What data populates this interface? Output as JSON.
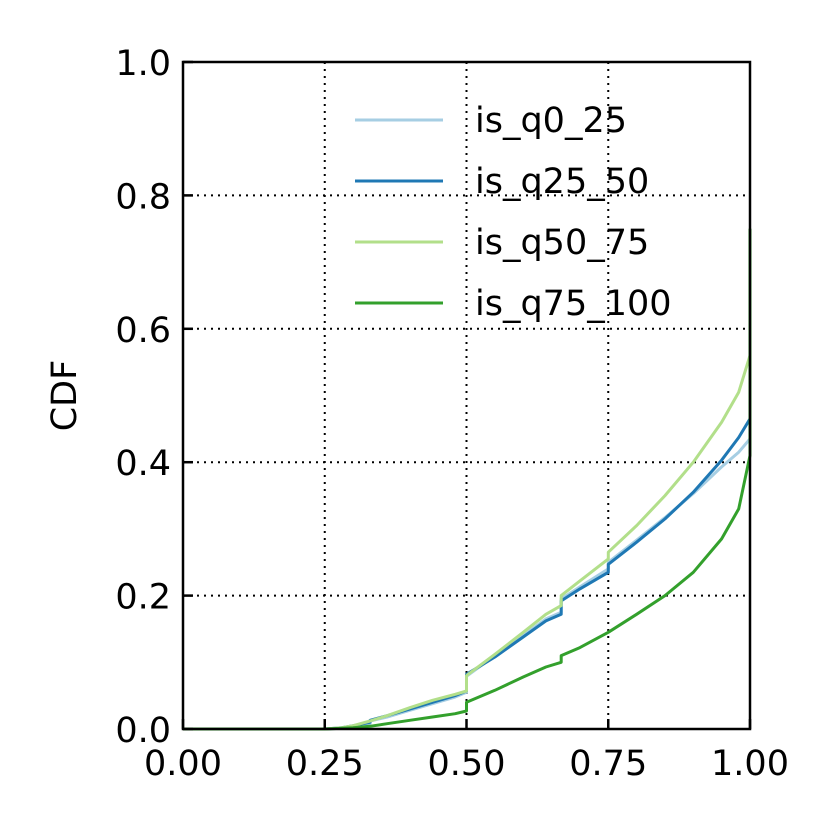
{
  "chart_data": {
    "type": "line",
    "title": "",
    "xlabel": "",
    "ylabel": "CDF",
    "xlim": [
      0.0,
      1.0
    ],
    "ylim": [
      0.0,
      1.0
    ],
    "xticks": [
      "0.00",
      "0.25",
      "0.50",
      "0.75",
      "1.00"
    ],
    "yticks": [
      "0.0",
      "0.2",
      "0.4",
      "0.6",
      "0.8",
      "1.0"
    ],
    "grid": true,
    "legend_position": "upper-right",
    "series": [
      {
        "name": "is_q0_25",
        "color": "#a6cee3",
        "x": [
          0.0,
          0.25,
          0.28,
          0.3,
          0.33,
          0.33,
          0.36,
          0.4,
          0.44,
          0.48,
          0.5,
          0.5,
          0.55,
          0.6,
          0.64,
          0.667,
          0.667,
          0.7,
          0.75,
          0.75,
          0.8,
          0.85,
          0.9,
          0.95,
          0.98,
          1.0
        ],
        "y": [
          0.0,
          0.0,
          0.001,
          0.004,
          0.008,
          0.012,
          0.018,
          0.028,
          0.038,
          0.048,
          0.055,
          0.079,
          0.11,
          0.14,
          0.165,
          0.175,
          0.195,
          0.213,
          0.24,
          0.25,
          0.283,
          0.317,
          0.353,
          0.393,
          0.415,
          0.435
        ]
      },
      {
        "name": "is_q25_50",
        "color": "#1f78b4",
        "x": [
          0.0,
          0.25,
          0.28,
          0.3,
          0.33,
          0.33,
          0.36,
          0.4,
          0.44,
          0.48,
          0.5,
          0.5,
          0.55,
          0.6,
          0.64,
          0.667,
          0.667,
          0.7,
          0.75,
          0.75,
          0.8,
          0.85,
          0.9,
          0.95,
          0.98,
          1.0,
          1.0
        ],
        "y": [
          0.0,
          0.0,
          0.002,
          0.005,
          0.01,
          0.013,
          0.02,
          0.03,
          0.04,
          0.05,
          0.057,
          0.082,
          0.108,
          0.138,
          0.162,
          0.172,
          0.192,
          0.21,
          0.235,
          0.247,
          0.28,
          0.315,
          0.355,
          0.403,
          0.437,
          0.465,
          0.48
        ]
      },
      {
        "name": "is_q50_75",
        "color": "#b2df8a",
        "x": [
          0.0,
          0.25,
          0.28,
          0.3,
          0.33,
          0.36,
          0.4,
          0.44,
          0.48,
          0.5,
          0.5,
          0.55,
          0.6,
          0.64,
          0.667,
          0.667,
          0.7,
          0.75,
          0.75,
          0.8,
          0.85,
          0.9,
          0.95,
          0.98,
          1.0,
          1.0
        ],
        "y": [
          0.0,
          0.0,
          0.002,
          0.005,
          0.012,
          0.02,
          0.032,
          0.043,
          0.052,
          0.057,
          0.08,
          0.112,
          0.145,
          0.172,
          0.185,
          0.2,
          0.222,
          0.255,
          0.265,
          0.305,
          0.35,
          0.4,
          0.46,
          0.505,
          0.56,
          0.75
        ]
      },
      {
        "name": "is_q75_100",
        "color": "#33a02c",
        "x": [
          0.0,
          0.25,
          0.3,
          0.33,
          0.36,
          0.4,
          0.44,
          0.48,
          0.5,
          0.5,
          0.55,
          0.6,
          0.64,
          0.667,
          0.667,
          0.7,
          0.75,
          0.8,
          0.85,
          0.9,
          0.95,
          0.98,
          1.0,
          1.0
        ],
        "y": [
          0.0,
          0.0,
          0.002,
          0.004,
          0.008,
          0.013,
          0.018,
          0.023,
          0.027,
          0.04,
          0.058,
          0.078,
          0.093,
          0.1,
          0.11,
          0.122,
          0.145,
          0.172,
          0.2,
          0.235,
          0.285,
          0.33,
          0.41,
          0.75
        ]
      }
    ]
  }
}
